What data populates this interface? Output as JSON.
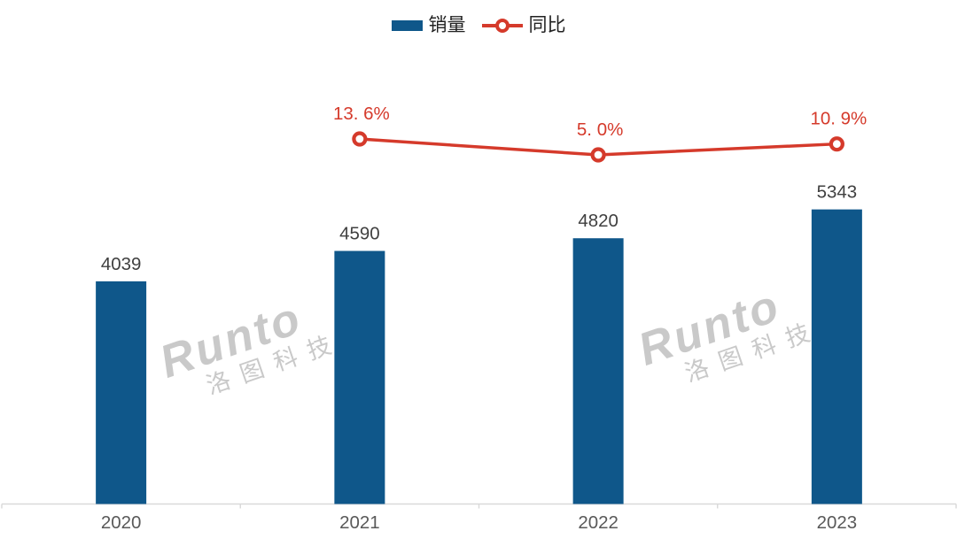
{
  "legend": {
    "items": [
      {
        "label": "销量",
        "type": "bar",
        "color": "#0f578a"
      },
      {
        "label": "同比",
        "type": "line",
        "color": "#d53a2b"
      }
    ]
  },
  "watermark": {
    "line1": "Runto",
    "line2": "洛图科技"
  },
  "chart_data": {
    "type": "bar",
    "categories": [
      "2020",
      "2021",
      "2022",
      "2023"
    ],
    "series": [
      {
        "name": "销量",
        "type": "bar",
        "color": "#0f578a",
        "values": [
          4039,
          4590,
          4820,
          5343
        ],
        "labels": [
          "4039",
          "4590",
          "4820",
          "5343"
        ]
      },
      {
        "name": "同比",
        "type": "line",
        "color": "#d53a2b",
        "values": [
          null,
          13.6,
          5.0,
          10.9
        ],
        "labels": [
          null,
          "13. 6%",
          "5. 0%",
          "10. 9%"
        ]
      }
    ],
    "title": "",
    "xlabel": "",
    "ylabel": "",
    "axis": {
      "x_line_color": "#d9d9d9",
      "x_label_color": "#595959",
      "grid": "off",
      "y_axis_visible": false
    },
    "bar_value_label_color": "#404040",
    "line_value_label_color": "#d53a2b",
    "legend_position": "top-center"
  }
}
